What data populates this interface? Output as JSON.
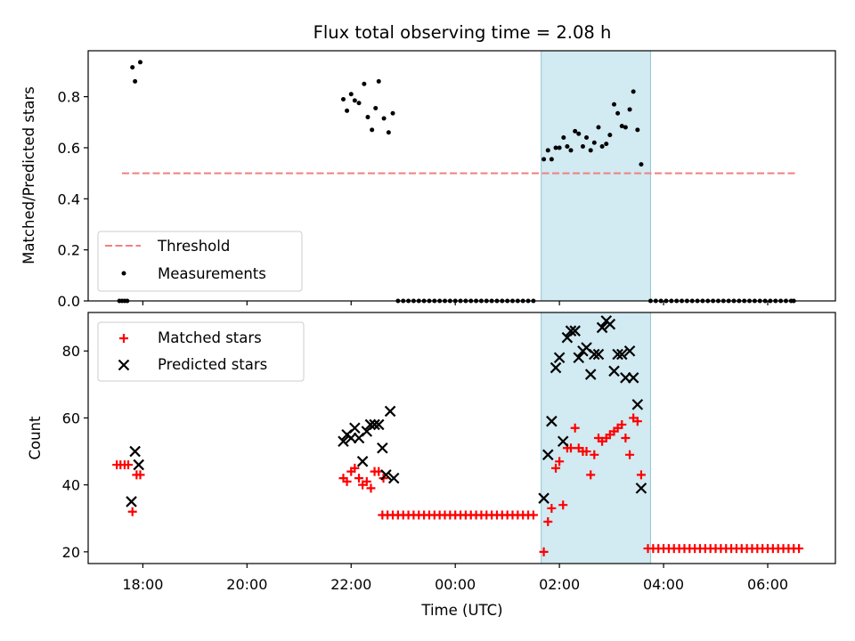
{
  "chart_data": [
    {
      "type": "scatter",
      "panel": "top",
      "title": "Flux total observing time = 2.08 h",
      "xlabel": "",
      "ylabel": "Matched/Predicted stars",
      "ylim": [
        0,
        0.98
      ],
      "yticks": [
        0.0,
        0.2,
        0.4,
        0.6,
        0.8
      ],
      "ytick_labels": [
        "0.0",
        "0.2",
        "0.4",
        "0.6",
        "0.8"
      ],
      "x_unit": "hours since 2023-01-01 00:00 UTC (day 1 = 24-48)",
      "xlim": [
        16.95,
        31.3
      ],
      "shaded_interval": {
        "x": [
          25.65,
          27.75
        ],
        "color": "#add8e6"
      },
      "threshold": {
        "name": "Threshold",
        "value": 0.5,
        "x": [
          17.6,
          30.55
        ],
        "color": "#f08080",
        "style": "dashed"
      },
      "legend": {
        "position": "lower-left",
        "entries": [
          "Threshold",
          "Measurements"
        ]
      },
      "series": [
        {
          "name": "Measurements",
          "color": "#000000",
          "points": [
            [
              17.55,
              0.0
            ],
            [
              17.6,
              0.0
            ],
            [
              17.65,
              0.0
            ],
            [
              17.7,
              0.0
            ],
            [
              17.8,
              0.915
            ],
            [
              17.85,
              0.86
            ],
            [
              17.95,
              0.935
            ],
            [
              21.85,
              0.79
            ],
            [
              21.92,
              0.745
            ],
            [
              22.0,
              0.81
            ],
            [
              22.07,
              0.785
            ],
            [
              22.15,
              0.775
            ],
            [
              22.25,
              0.85
            ],
            [
              22.32,
              0.72
            ],
            [
              22.4,
              0.67
            ],
            [
              22.47,
              0.755
            ],
            [
              22.53,
              0.86
            ],
            [
              22.63,
              0.715
            ],
            [
              22.72,
              0.66
            ],
            [
              22.8,
              0.735
            ],
            [
              25.7,
              0.555
            ],
            [
              25.78,
              0.59
            ],
            [
              25.85,
              0.555
            ],
            [
              25.93,
              0.6
            ],
            [
              26.0,
              0.6
            ],
            [
              26.08,
              0.64
            ],
            [
              26.15,
              0.605
            ],
            [
              26.22,
              0.59
            ],
            [
              26.3,
              0.665
            ],
            [
              26.37,
              0.655
            ],
            [
              26.45,
              0.605
            ],
            [
              26.52,
              0.64
            ],
            [
              26.6,
              0.59
            ],
            [
              26.67,
              0.62
            ],
            [
              26.75,
              0.68
            ],
            [
              26.82,
              0.605
            ],
            [
              26.9,
              0.615
            ],
            [
              26.97,
              0.65
            ],
            [
              27.05,
              0.77
            ],
            [
              27.12,
              0.735
            ],
            [
              27.2,
              0.685
            ],
            [
              27.27,
              0.68
            ],
            [
              27.35,
              0.75
            ],
            [
              27.42,
              0.82
            ],
            [
              27.5,
              0.67
            ],
            [
              27.57,
              0.535
            ],
            [
              22.9,
              0.0
            ],
            [
              23.0,
              0.0
            ],
            [
              23.1,
              0.0
            ],
            [
              23.2,
              0.0
            ],
            [
              23.3,
              0.0
            ],
            [
              23.4,
              0.0
            ],
            [
              23.5,
              0.0
            ],
            [
              23.6,
              0.0
            ],
            [
              23.7,
              0.0
            ],
            [
              23.8,
              0.0
            ],
            [
              23.9,
              0.0
            ],
            [
              24.0,
              0.0
            ],
            [
              24.1,
              0.0
            ],
            [
              24.2,
              0.0
            ],
            [
              24.3,
              0.0
            ],
            [
              24.4,
              0.0
            ],
            [
              24.5,
              0.0
            ],
            [
              24.6,
              0.0
            ],
            [
              24.7,
              0.0
            ],
            [
              24.8,
              0.0
            ],
            [
              24.9,
              0.0
            ],
            [
              25.0,
              0.0
            ],
            [
              25.1,
              0.0
            ],
            [
              25.2,
              0.0
            ],
            [
              25.3,
              0.0
            ],
            [
              25.4,
              0.0
            ],
            [
              25.5,
              0.0
            ],
            [
              27.75,
              0.0
            ],
            [
              27.85,
              0.0
            ],
            [
              27.95,
              0.0
            ],
            [
              28.05,
              0.0
            ],
            [
              28.15,
              0.0
            ],
            [
              28.25,
              0.0
            ],
            [
              28.35,
              0.0
            ],
            [
              28.45,
              0.0
            ],
            [
              28.55,
              0.0
            ],
            [
              28.65,
              0.0
            ],
            [
              28.75,
              0.0
            ],
            [
              28.85,
              0.0
            ],
            [
              28.95,
              0.0
            ],
            [
              29.05,
              0.0
            ],
            [
              29.15,
              0.0
            ],
            [
              29.25,
              0.0
            ],
            [
              29.35,
              0.0
            ],
            [
              29.45,
              0.0
            ],
            [
              29.55,
              0.0
            ],
            [
              29.65,
              0.0
            ],
            [
              29.75,
              0.0
            ],
            [
              29.85,
              0.0
            ],
            [
              29.95,
              0.0
            ],
            [
              30.05,
              0.0
            ],
            [
              30.15,
              0.0
            ],
            [
              30.25,
              0.0
            ],
            [
              30.35,
              0.0
            ],
            [
              30.45,
              0.0
            ],
            [
              30.5,
              0.0
            ]
          ]
        }
      ]
    },
    {
      "type": "scatter",
      "panel": "bottom",
      "title": "",
      "xlabel": "Time (UTC)",
      "ylabel": "Count",
      "ylim": [
        16.5,
        91.5
      ],
      "yticks": [
        20,
        40,
        60,
        80
      ],
      "ytick_labels": [
        "20",
        "40",
        "60",
        "80"
      ],
      "xlim": [
        16.95,
        31.3
      ],
      "xticks": [
        18,
        20,
        22,
        24,
        26,
        28,
        30
      ],
      "xtick_labels": [
        "18:00",
        "20:00",
        "22:00",
        "00:00",
        "02:00",
        "04:00",
        "06:00"
      ],
      "shaded_interval": {
        "x": [
          25.65,
          27.75
        ],
        "color": "#add8e6"
      },
      "legend": {
        "position": "upper-left",
        "entries": [
          "Matched stars",
          "Predicted stars"
        ]
      },
      "series": [
        {
          "name": "Matched stars",
          "marker": "plus",
          "color": "#ff0000",
          "points": [
            [
              17.5,
              46
            ],
            [
              17.57,
              46
            ],
            [
              17.65,
              46
            ],
            [
              17.72,
              46
            ],
            [
              17.8,
              32
            ],
            [
              17.88,
              43
            ],
            [
              17.95,
              43
            ],
            [
              21.85,
              42
            ],
            [
              21.92,
              41
            ],
            [
              22.0,
              44
            ],
            [
              22.07,
              45
            ],
            [
              22.15,
              42
            ],
            [
              22.22,
              40
            ],
            [
              22.3,
              41
            ],
            [
              22.38,
              39
            ],
            [
              22.45,
              44
            ],
            [
              22.53,
              44
            ],
            [
              22.62,
              42
            ],
            [
              22.6,
              31
            ],
            [
              22.7,
              31
            ],
            [
              22.8,
              31
            ],
            [
              22.9,
              31
            ],
            [
              23.0,
              31
            ],
            [
              23.1,
              31
            ],
            [
              23.2,
              31
            ],
            [
              23.3,
              31
            ],
            [
              23.4,
              31
            ],
            [
              23.5,
              31
            ],
            [
              23.6,
              31
            ],
            [
              23.7,
              31
            ],
            [
              23.8,
              31
            ],
            [
              23.9,
              31
            ],
            [
              24.0,
              31
            ],
            [
              24.1,
              31
            ],
            [
              24.2,
              31
            ],
            [
              24.3,
              31
            ],
            [
              24.4,
              31
            ],
            [
              24.5,
              31
            ],
            [
              24.6,
              31
            ],
            [
              24.7,
              31
            ],
            [
              24.8,
              31
            ],
            [
              24.9,
              31
            ],
            [
              25.0,
              31
            ],
            [
              25.1,
              31
            ],
            [
              25.2,
              31
            ],
            [
              25.3,
              31
            ],
            [
              25.4,
              31
            ],
            [
              25.5,
              31
            ],
            [
              25.7,
              20
            ],
            [
              25.78,
              29
            ],
            [
              25.85,
              33
            ],
            [
              25.93,
              45
            ],
            [
              26.0,
              47
            ],
            [
              26.07,
              34
            ],
            [
              26.15,
              51
            ],
            [
              26.22,
              51
            ],
            [
              26.3,
              57
            ],
            [
              26.37,
              51
            ],
            [
              26.45,
              50
            ],
            [
              26.52,
              50
            ],
            [
              26.6,
              43
            ],
            [
              26.67,
              49
            ],
            [
              26.75,
              54
            ],
            [
              26.82,
              53
            ],
            [
              26.9,
              54
            ],
            [
              26.97,
              55
            ],
            [
              27.05,
              56
            ],
            [
              27.12,
              57
            ],
            [
              27.2,
              58
            ],
            [
              27.27,
              54
            ],
            [
              27.35,
              49
            ],
            [
              27.42,
              60
            ],
            [
              27.5,
              59
            ],
            [
              27.57,
              43
            ],
            [
              27.7,
              21
            ],
            [
              27.8,
              21
            ],
            [
              27.9,
              21
            ],
            [
              28.0,
              21
            ],
            [
              28.1,
              21
            ],
            [
              28.2,
              21
            ],
            [
              28.3,
              21
            ],
            [
              28.4,
              21
            ],
            [
              28.5,
              21
            ],
            [
              28.6,
              21
            ],
            [
              28.7,
              21
            ],
            [
              28.8,
              21
            ],
            [
              28.9,
              21
            ],
            [
              29.0,
              21
            ],
            [
              29.1,
              21
            ],
            [
              29.2,
              21
            ],
            [
              29.3,
              21
            ],
            [
              29.4,
              21
            ],
            [
              29.5,
              21
            ],
            [
              29.6,
              21
            ],
            [
              29.7,
              21
            ],
            [
              29.8,
              21
            ],
            [
              29.9,
              21
            ],
            [
              30.0,
              21
            ],
            [
              30.1,
              21
            ],
            [
              30.2,
              21
            ],
            [
              30.3,
              21
            ],
            [
              30.4,
              21
            ],
            [
              30.5,
              21
            ],
            [
              30.6,
              21
            ]
          ]
        },
        {
          "name": "Predicted stars",
          "marker": "x",
          "color": "#000000",
          "points": [
            [
              17.78,
              35
            ],
            [
              17.85,
              50
            ],
            [
              17.92,
              46
            ],
            [
              21.85,
              53
            ],
            [
              21.92,
              55
            ],
            [
              22.0,
              54
            ],
            [
              22.07,
              57
            ],
            [
              22.15,
              54
            ],
            [
              22.22,
              47
            ],
            [
              22.3,
              56
            ],
            [
              22.37,
              58
            ],
            [
              22.45,
              58
            ],
            [
              22.53,
              58
            ],
            [
              22.6,
              51
            ],
            [
              22.67,
              43
            ],
            [
              22.75,
              62
            ],
            [
              22.82,
              42
            ],
            [
              25.7,
              36
            ],
            [
              25.78,
              49
            ],
            [
              25.85,
              59
            ],
            [
              25.93,
              75
            ],
            [
              26.0,
              78
            ],
            [
              26.07,
              53
            ],
            [
              26.15,
              84
            ],
            [
              26.22,
              86
            ],
            [
              26.3,
              86
            ],
            [
              26.37,
              78
            ],
            [
              26.45,
              80
            ],
            [
              26.52,
              81
            ],
            [
              26.6,
              73
            ],
            [
              26.67,
              79
            ],
            [
              26.75,
              79
            ],
            [
              26.82,
              87
            ],
            [
              26.9,
              89
            ],
            [
              26.97,
              88
            ],
            [
              27.05,
              74
            ],
            [
              27.12,
              79
            ],
            [
              27.2,
              79
            ],
            [
              27.27,
              72
            ],
            [
              27.35,
              80
            ],
            [
              27.42,
              72
            ],
            [
              27.5,
              64
            ],
            [
              27.57,
              39
            ]
          ]
        }
      ]
    }
  ]
}
